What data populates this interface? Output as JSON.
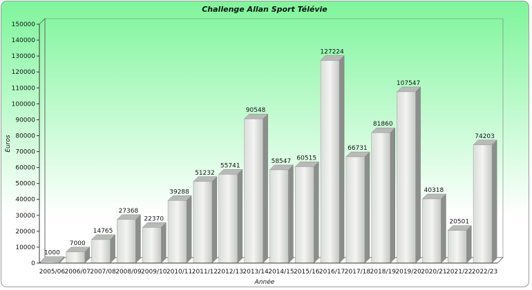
{
  "chart_data": {
    "type": "bar3d",
    "title": "Challenge Allan Sport Télévie",
    "x_label": "Année",
    "y_label": "Euros",
    "categories": [
      "2005/06",
      "2006/07",
      "2007/08",
      "2008/09",
      "2009/10",
      "2010/11",
      "2011/12",
      "2012/13",
      "2013/14",
      "2014/15",
      "2015/16",
      "2016/17",
      "2017/18",
      "2018/19",
      "2019/20",
      "2020/21",
      "2021/22",
      "2022/23"
    ],
    "values": [
      1000,
      7000,
      14765,
      27368,
      22370,
      39288,
      51232,
      55741,
      90548,
      58547,
      60515,
      127224,
      66731,
      81860,
      107547,
      40318,
      20501,
      74203
    ],
    "ylim": [
      0,
      150000
    ],
    "yticks": [
      0,
      10000,
      20000,
      30000,
      40000,
      50000,
      60000,
      70000,
      80000,
      90000,
      100000,
      110000,
      120000,
      130000,
      140000,
      150000
    ]
  }
}
